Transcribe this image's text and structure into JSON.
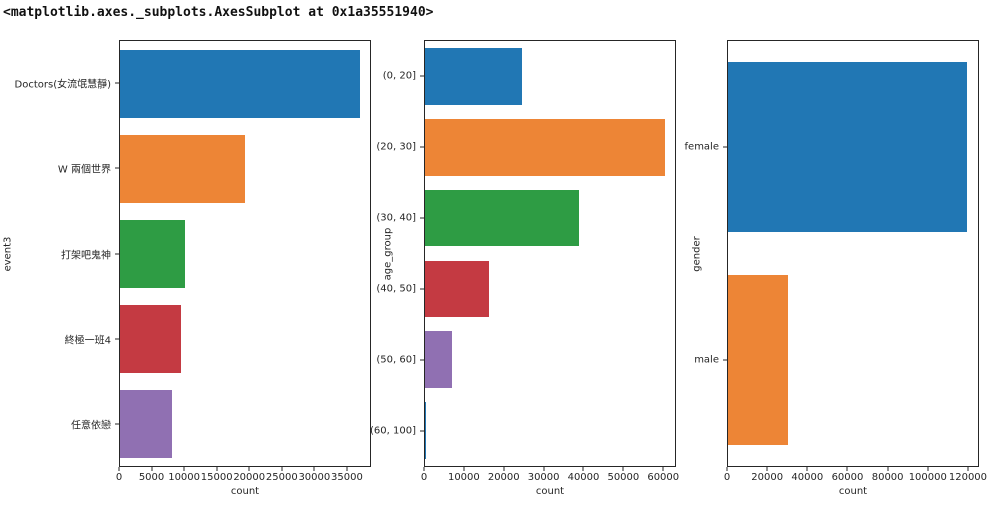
{
  "header": {
    "repr_text": "<matplotlib.axes._subplots.AxesSubplot at 0x1a35551940>"
  },
  "palette": [
    "#2177b4",
    "#ed8536",
    "#2e9c44",
    "#c43a42",
    "#9070b2"
  ],
  "chart_data": [
    {
      "type": "bar",
      "orientation": "horizontal",
      "title": "",
      "ylabel": "event3",
      "xlabel": "count",
      "categories": [
        "Doctors(女流氓慧靜)",
        "W 兩個世界",
        "打架吧鬼神",
        "終極一班4",
        "任意依戀"
      ],
      "values": [
        37200,
        19400,
        10000,
        9400,
        8000
      ],
      "xlim": [
        0,
        38700
      ],
      "xticks": [
        0,
        5000,
        10000,
        15000,
        20000,
        25000,
        30000,
        35000
      ],
      "grid": false,
      "legend": "none"
    },
    {
      "type": "bar",
      "orientation": "horizontal",
      "title": "",
      "ylabel": "age_group",
      "xlabel": "count",
      "categories": [
        "(0, 20]",
        "(20, 30]",
        "(30, 40]",
        "(40, 50]",
        "(50, 60]",
        "(60, 100]"
      ],
      "values": [
        24500,
        60600,
        38900,
        16100,
        6900,
        150
      ],
      "xlim": [
        0,
        63200
      ],
      "xticks": [
        0,
        10000,
        20000,
        30000,
        40000,
        50000,
        60000
      ],
      "grid": false,
      "legend": "none"
    },
    {
      "type": "bar",
      "orientation": "horizontal",
      "title": "",
      "ylabel": "gender",
      "xlabel": "count",
      "categories": [
        "female",
        "male"
      ],
      "values": [
        120000,
        30000
      ],
      "xlim": [
        0,
        125500
      ],
      "xticks": [
        0,
        20000,
        40000,
        60000,
        80000,
        100000,
        120000
      ],
      "grid": false,
      "legend": "none"
    }
  ]
}
